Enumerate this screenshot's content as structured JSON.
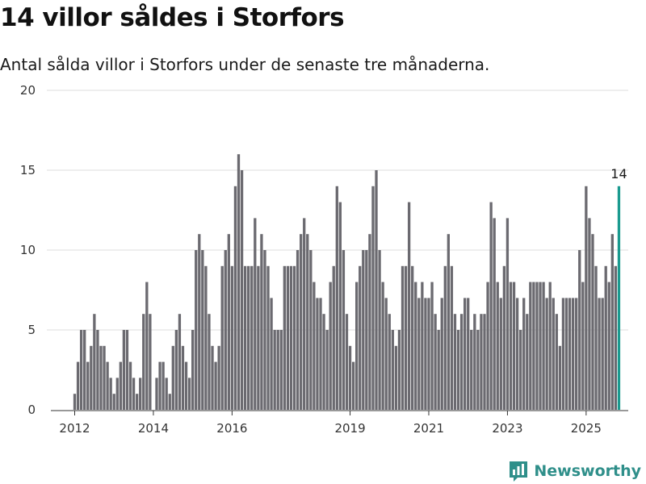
{
  "title": "14 villor såldes i Storfors",
  "subtitle": "Antal sålda villor i Storfors under de senaste tre månaderna.",
  "brand": {
    "name": "Newsworthy",
    "icon": "newsworthy-logo-icon",
    "color": "#2f8f8a"
  },
  "chart_data": {
    "type": "bar",
    "xlabel": "",
    "ylabel": "",
    "ylim": [
      0,
      20
    ],
    "yticks": [
      0,
      5,
      10,
      15,
      20
    ],
    "grid": true,
    "x_start": "2012-01",
    "x_ticks": [
      {
        "label": "2012",
        "date": "2012-01"
      },
      {
        "label": "2014",
        "date": "2014-01"
      },
      {
        "label": "2016",
        "date": "2016-01"
      },
      {
        "label": "2019",
        "date": "2019-01"
      },
      {
        "label": "2021",
        "date": "2021-01"
      },
      {
        "label": "2023",
        "date": "2023-01"
      },
      {
        "label": "2025",
        "date": "2025-01"
      }
    ],
    "bar_color": "#6b6a70",
    "highlight_color": "#1a9a8f",
    "highlight_last": true,
    "last_label": "14",
    "values": [
      1,
      3,
      5,
      5,
      3,
      4,
      6,
      5,
      4,
      4,
      3,
      2,
      1,
      2,
      3,
      5,
      5,
      3,
      2,
      1,
      2,
      6,
      8,
      6,
      0,
      2,
      3,
      3,
      2,
      1,
      4,
      5,
      6,
      4,
      3,
      2,
      5,
      10,
      11,
      10,
      9,
      6,
      4,
      3,
      4,
      9,
      10,
      11,
      9,
      14,
      16,
      15,
      9,
      9,
      9,
      12,
      9,
      11,
      10,
      9,
      7,
      5,
      5,
      5,
      9,
      9,
      9,
      9,
      10,
      11,
      12,
      11,
      10,
      8,
      7,
      7,
      6,
      5,
      8,
      9,
      14,
      13,
      10,
      6,
      4,
      3,
      8,
      9,
      10,
      10,
      11,
      14,
      15,
      10,
      8,
      7,
      6,
      5,
      4,
      5,
      9,
      9,
      13,
      9,
      8,
      7,
      8,
      7,
      7,
      8,
      6,
      5,
      7,
      9,
      11,
      9,
      6,
      5,
      6,
      7,
      7,
      5,
      6,
      5,
      6,
      6,
      8,
      13,
      12,
      8,
      7,
      9,
      12,
      8,
      8,
      7,
      5,
      7,
      6,
      8,
      8,
      8,
      8,
      8,
      7,
      8,
      7,
      6,
      4,
      7,
      7,
      7,
      7,
      7,
      10,
      8,
      14,
      12,
      11,
      9,
      7,
      7,
      9,
      8,
      11,
      9,
      14
    ]
  }
}
